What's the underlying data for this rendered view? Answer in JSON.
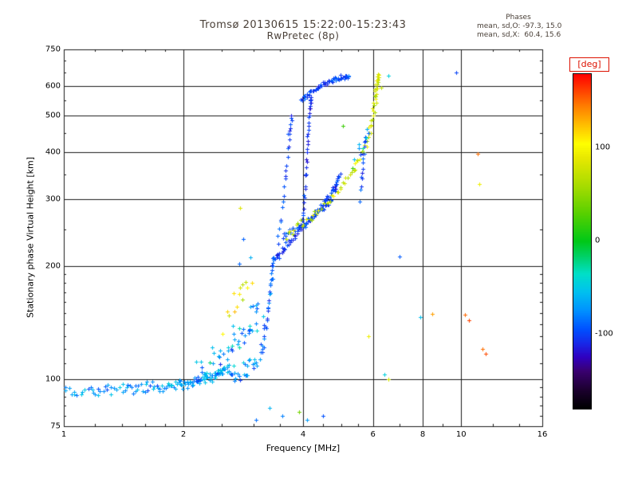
{
  "figure": {
    "background": "#ffffff",
    "text_color": "#4a4038",
    "grid_color": "#1a1a1a",
    "accent_red": "#dd1100"
  },
  "title": {
    "line1": "Tromsø 20130615 15:22:00-15:23:43",
    "line2": "RwPretec (8p)"
  },
  "stats": {
    "header": "Phases",
    "line_o": "mean, sd,O: -97.3, 15.0",
    "line_x": "mean, sd,X:  60.4, 15.6"
  },
  "axes": {
    "x": {
      "label": "Frequency [MHz]",
      "scale": "log",
      "min": 1,
      "max": 16,
      "ticks": [
        1,
        2,
        4,
        6,
        8,
        10,
        16
      ],
      "grid": [
        2,
        4,
        6,
        8,
        10
      ],
      "minor": [
        1.2,
        1.4,
        1.6,
        1.8,
        2.5,
        3,
        3.5,
        4.5,
        5,
        5.5,
        7,
        9,
        12,
        14
      ]
    },
    "y": {
      "label": "Stationary phase Virtual Height [km]",
      "scale": "log",
      "min": 75,
      "max": 750,
      "ticks": [
        75,
        100,
        200,
        300,
        400,
        500,
        600,
        750
      ],
      "grid": [
        100,
        200,
        300,
        400,
        500,
        600
      ],
      "minor": [
        80,
        85,
        90,
        95,
        110,
        120,
        130,
        140,
        150,
        160,
        170,
        180,
        190,
        250,
        350,
        450,
        550,
        650,
        700
      ]
    }
  },
  "colorbar": {
    "label": "[deg]",
    "ticks": [
      100,
      0,
      -100
    ],
    "domain": [
      -180,
      180
    ],
    "stops": [
      [
        -180,
        "#000000"
      ],
      [
        -160,
        "#1c0030"
      ],
      [
        -140,
        "#3a0070"
      ],
      [
        -125,
        "#3000c0"
      ],
      [
        -110,
        "#1828e8"
      ],
      [
        -95,
        "#0050ff"
      ],
      [
        -75,
        "#0090ff"
      ],
      [
        -55,
        "#00c0f0"
      ],
      [
        -35,
        "#00e0c8"
      ],
      [
        -15,
        "#00d060"
      ],
      [
        0,
        "#00c818"
      ],
      [
        30,
        "#58d000"
      ],
      [
        60,
        "#a8dc00"
      ],
      [
        90,
        "#e8e800"
      ],
      [
        105,
        "#ffff00"
      ],
      [
        125,
        "#ffc000"
      ],
      [
        145,
        "#ff8000"
      ],
      [
        165,
        "#ff3800"
      ],
      [
        180,
        "#ff0000"
      ]
    ]
  },
  "chart_data": {
    "type": "scatter",
    "marker": "plus",
    "x_unit": "MHz",
    "y_unit": "km",
    "color_unit": "deg",
    "traces": [
      {
        "name": "e-region-band",
        "control": [
          [
            1.0,
            93
          ],
          [
            1.4,
            94
          ],
          [
            1.8,
            96
          ],
          [
            2.1,
            98
          ],
          [
            2.35,
            102
          ],
          [
            2.6,
            108
          ]
        ],
        "n": 140,
        "jf": 0.012,
        "jh": 2.5,
        "phase": -70,
        "sd": 22
      },
      {
        "name": "e-scatter-blue",
        "control": [
          [
            2.15,
            104
          ],
          [
            2.45,
            115
          ],
          [
            2.7,
            128
          ],
          [
            2.95,
            142
          ],
          [
            3.1,
            156
          ]
        ],
        "n": 48,
        "jf": 0.028,
        "jh": 11,
        "phase": -62,
        "sd": 35
      },
      {
        "name": "e-tail",
        "control": [
          [
            2.6,
            100
          ],
          [
            2.85,
            106
          ],
          [
            3.05,
            114
          ]
        ],
        "n": 25,
        "jf": 0.02,
        "jh": 7,
        "phase": -70,
        "sd": 25
      },
      {
        "name": "e-scatter-warm",
        "control": [
          [
            2.5,
            142
          ],
          [
            2.65,
            158
          ],
          [
            2.8,
            172
          ],
          [
            2.95,
            186
          ]
        ],
        "n": 14,
        "jf": 0.02,
        "jh": 9,
        "phase": 95,
        "sd": 35
      },
      {
        "name": "f-riser-3p2mhz",
        "control": [
          [
            3.12,
            112
          ],
          [
            3.2,
            131
          ],
          [
            3.27,
            157
          ],
          [
            3.33,
            188
          ],
          [
            3.37,
            212
          ]
        ],
        "n": 38,
        "jf": 0.007,
        "jh": 5,
        "phase": -88,
        "sd": 18
      },
      {
        "name": "o-trace-main",
        "control": [
          [
            3.4,
            208
          ],
          [
            3.65,
            228
          ],
          [
            3.95,
            250
          ],
          [
            4.25,
            272
          ],
          [
            4.55,
            296
          ],
          [
            4.8,
            322
          ],
          [
            4.95,
            346
          ]
        ],
        "n": 75,
        "jf": 0.009,
        "jh": 4,
        "phase": -102,
        "sd": 12
      },
      {
        "name": "o-trace-parallel",
        "control": [
          [
            3.55,
            238
          ],
          [
            3.85,
            252
          ],
          [
            4.15,
            266
          ],
          [
            4.45,
            282
          ],
          [
            4.7,
            298
          ]
        ],
        "n": 42,
        "jf": 0.008,
        "jh": 4,
        "phase": -98,
        "sd": 10
      },
      {
        "name": "o-inner-steep",
        "control": [
          [
            3.42,
            218
          ],
          [
            3.52,
            268
          ],
          [
            3.6,
            332
          ],
          [
            3.66,
            402
          ],
          [
            3.7,
            462
          ],
          [
            3.73,
            505
          ]
        ],
        "n": 26,
        "jf": 0.006,
        "jh": 9,
        "phase": -100,
        "sd": 12
      },
      {
        "name": "o-steep-4mhz",
        "control": [
          [
            3.97,
            245
          ],
          [
            4.03,
            302
          ],
          [
            4.08,
            372
          ],
          [
            4.12,
            452
          ],
          [
            4.16,
            522
          ],
          [
            4.2,
            560
          ]
        ],
        "n": 38,
        "jf": 0.005,
        "jh": 9,
        "phase": -106,
        "sd": 10
      },
      {
        "name": "top-band",
        "control": [
          [
            3.95,
            548
          ],
          [
            4.2,
            580
          ],
          [
            4.5,
            606
          ],
          [
            4.8,
            622
          ],
          [
            5.05,
            633
          ],
          [
            5.2,
            640
          ]
        ],
        "n": 60,
        "jf": 0.009,
        "jh": 7,
        "phase": -100,
        "sd": 14
      },
      {
        "name": "x-trace",
        "control": [
          [
            3.62,
            242
          ],
          [
            4.0,
            262
          ],
          [
            4.4,
            284
          ],
          [
            4.85,
            312
          ],
          [
            5.25,
            348
          ],
          [
            5.6,
            392
          ],
          [
            5.85,
            442
          ],
          [
            6.0,
            500
          ],
          [
            6.1,
            560
          ],
          [
            6.15,
            612
          ],
          [
            6.18,
            645
          ]
        ],
        "n": 85,
        "jf": 0.011,
        "jh": 6,
        "phase": 78,
        "sd": 22
      },
      {
        "name": "f-branch-5p6mhz",
        "control": [
          [
            5.55,
            305
          ],
          [
            5.62,
            350
          ],
          [
            5.68,
            400
          ],
          [
            5.73,
            440
          ]
        ],
        "n": 15,
        "jf": 0.006,
        "jh": 8,
        "phase": -95,
        "sd": 15
      },
      {
        "name": "sparse-cyan-high",
        "control": [
          [
            5.3,
            360
          ],
          [
            5.6,
            420
          ],
          [
            5.85,
            470
          ]
        ],
        "n": 9,
        "jf": 0.02,
        "jh": 22,
        "phase": -35,
        "sd": 45
      }
    ],
    "outliers": [
      [
        9.7,
        650,
        -100
      ],
      [
        6.55,
        640,
        -45
      ],
      [
        6.3,
        595,
        70
      ],
      [
        11.0,
        397,
        150
      ],
      [
        11.1,
        330,
        95
      ],
      [
        10.2,
        148,
        152
      ],
      [
        10.45,
        143,
        162
      ],
      [
        11.3,
        120,
        150
      ],
      [
        11.5,
        117,
        160
      ],
      [
        8.45,
        149,
        135
      ],
      [
        7.9,
        146,
        -55
      ],
      [
        6.4,
        103,
        -45
      ],
      [
        6.55,
        100,
        80
      ],
      [
        5.85,
        130,
        95
      ],
      [
        7.0,
        212,
        -92
      ],
      [
        5.05,
        470,
        20
      ],
      [
        3.3,
        84,
        -60
      ],
      [
        3.55,
        80,
        -80
      ],
      [
        3.9,
        82,
        40
      ],
      [
        4.1,
        78,
        -70
      ],
      [
        4.5,
        80,
        -95
      ],
      [
        3.05,
        78,
        -85
      ],
      [
        2.77,
        202,
        -88
      ],
      [
        2.83,
        236,
        -90
      ],
      [
        2.95,
        210,
        -62
      ],
      [
        2.78,
        285,
        85
      ]
    ]
  }
}
